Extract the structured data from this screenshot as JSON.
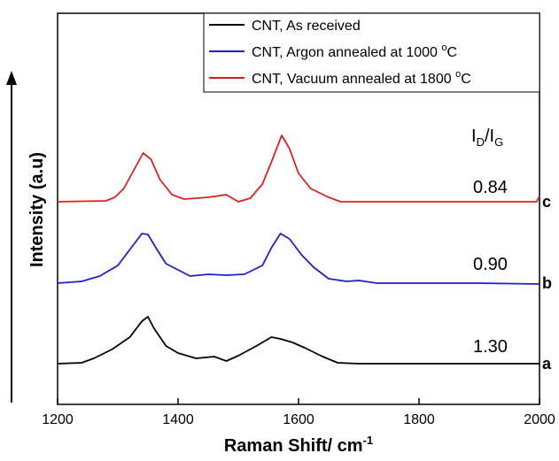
{
  "chart_data": {
    "type": "line",
    "xlabel": "Raman Shift/ cm",
    "xlabel_sup": "-1",
    "ylabel": "Intensity (a.u)",
    "xlim": [
      1200,
      2000
    ],
    "x_ticks": [
      "1200",
      "1400",
      "1600",
      "1800",
      "2000"
    ],
    "y_ticks_shown": false,
    "grid": false,
    "legend_position": "top-right",
    "ratio_header": {
      "main": "I",
      "sub1": "D",
      "slash": "/I",
      "sub2": "G"
    },
    "series": [
      {
        "name": "CNT, As received",
        "label_html_parts": [
          "CNT, As received"
        ],
        "color": "#000000",
        "curve_label": "a",
        "ratio": "1.30",
        "points": [
          [
            1200,
            0.0
          ],
          [
            1240,
            0.1
          ],
          [
            1260,
            0.6
          ],
          [
            1290,
            1.6
          ],
          [
            1320,
            3.0
          ],
          [
            1340,
            4.8
          ],
          [
            1350,
            5.3
          ],
          [
            1360,
            4.0
          ],
          [
            1380,
            2.0
          ],
          [
            1400,
            1.2
          ],
          [
            1430,
            0.6
          ],
          [
            1460,
            0.8
          ],
          [
            1480,
            0.3
          ],
          [
            1500,
            0.9
          ],
          [
            1530,
            2.0
          ],
          [
            1555,
            3.0
          ],
          [
            1570,
            2.8
          ],
          [
            1590,
            2.4
          ],
          [
            1610,
            1.8
          ],
          [
            1640,
            0.8
          ],
          [
            1665,
            0.1
          ],
          [
            1700,
            0.0
          ],
          [
            1800,
            0.0
          ],
          [
            1900,
            0.0
          ],
          [
            2000,
            0.0
          ]
        ]
      },
      {
        "name_prefix": "CNT, Argon annealed at 1000 ",
        "name_sup": "o",
        "name_suffix": "C",
        "color": "#1f1fcc",
        "curve_label": "b",
        "ratio": "0.90",
        "points": [
          [
            1200,
            0.0
          ],
          [
            1240,
            0.2
          ],
          [
            1270,
            0.8
          ],
          [
            1300,
            2.0
          ],
          [
            1320,
            3.8
          ],
          [
            1340,
            5.6
          ],
          [
            1350,
            5.5
          ],
          [
            1365,
            3.8
          ],
          [
            1380,
            2.2
          ],
          [
            1400,
            1.5
          ],
          [
            1420,
            0.8
          ],
          [
            1450,
            1.0
          ],
          [
            1480,
            0.9
          ],
          [
            1510,
            1.0
          ],
          [
            1540,
            2.0
          ],
          [
            1555,
            4.0
          ],
          [
            1570,
            5.6
          ],
          [
            1585,
            5.0
          ],
          [
            1605,
            3.2
          ],
          [
            1625,
            1.8
          ],
          [
            1650,
            0.5
          ],
          [
            1680,
            0.2
          ],
          [
            1700,
            0.3
          ],
          [
            1730,
            0.0
          ],
          [
            1800,
            0.0
          ],
          [
            1900,
            0.0
          ],
          [
            2000,
            -0.1
          ]
        ]
      },
      {
        "name_prefix": "CNT, Vacuum annealed at 1800 ",
        "name_sup": "o",
        "name_suffix": "C",
        "color": "#e02020",
        "curve_label": "c",
        "ratio": "0.84",
        "points": [
          [
            1200,
            0.0
          ],
          [
            1280,
            0.1
          ],
          [
            1295,
            0.5
          ],
          [
            1310,
            1.5
          ],
          [
            1330,
            4.0
          ],
          [
            1342,
            5.5
          ],
          [
            1355,
            4.8
          ],
          [
            1370,
            2.5
          ],
          [
            1390,
            0.8
          ],
          [
            1410,
            0.3
          ],
          [
            1450,
            0.5
          ],
          [
            1480,
            0.8
          ],
          [
            1500,
            0.0
          ],
          [
            1520,
            0.4
          ],
          [
            1540,
            2.0
          ],
          [
            1555,
            4.5
          ],
          [
            1572,
            7.5
          ],
          [
            1585,
            6.0
          ],
          [
            1600,
            3.2
          ],
          [
            1620,
            1.5
          ],
          [
            1650,
            0.5
          ],
          [
            1670,
            0.0
          ],
          [
            1800,
            0.0
          ],
          [
            1900,
            0.0
          ],
          [
            1995,
            0.0
          ],
          [
            2000,
            0.6
          ]
        ]
      }
    ]
  }
}
